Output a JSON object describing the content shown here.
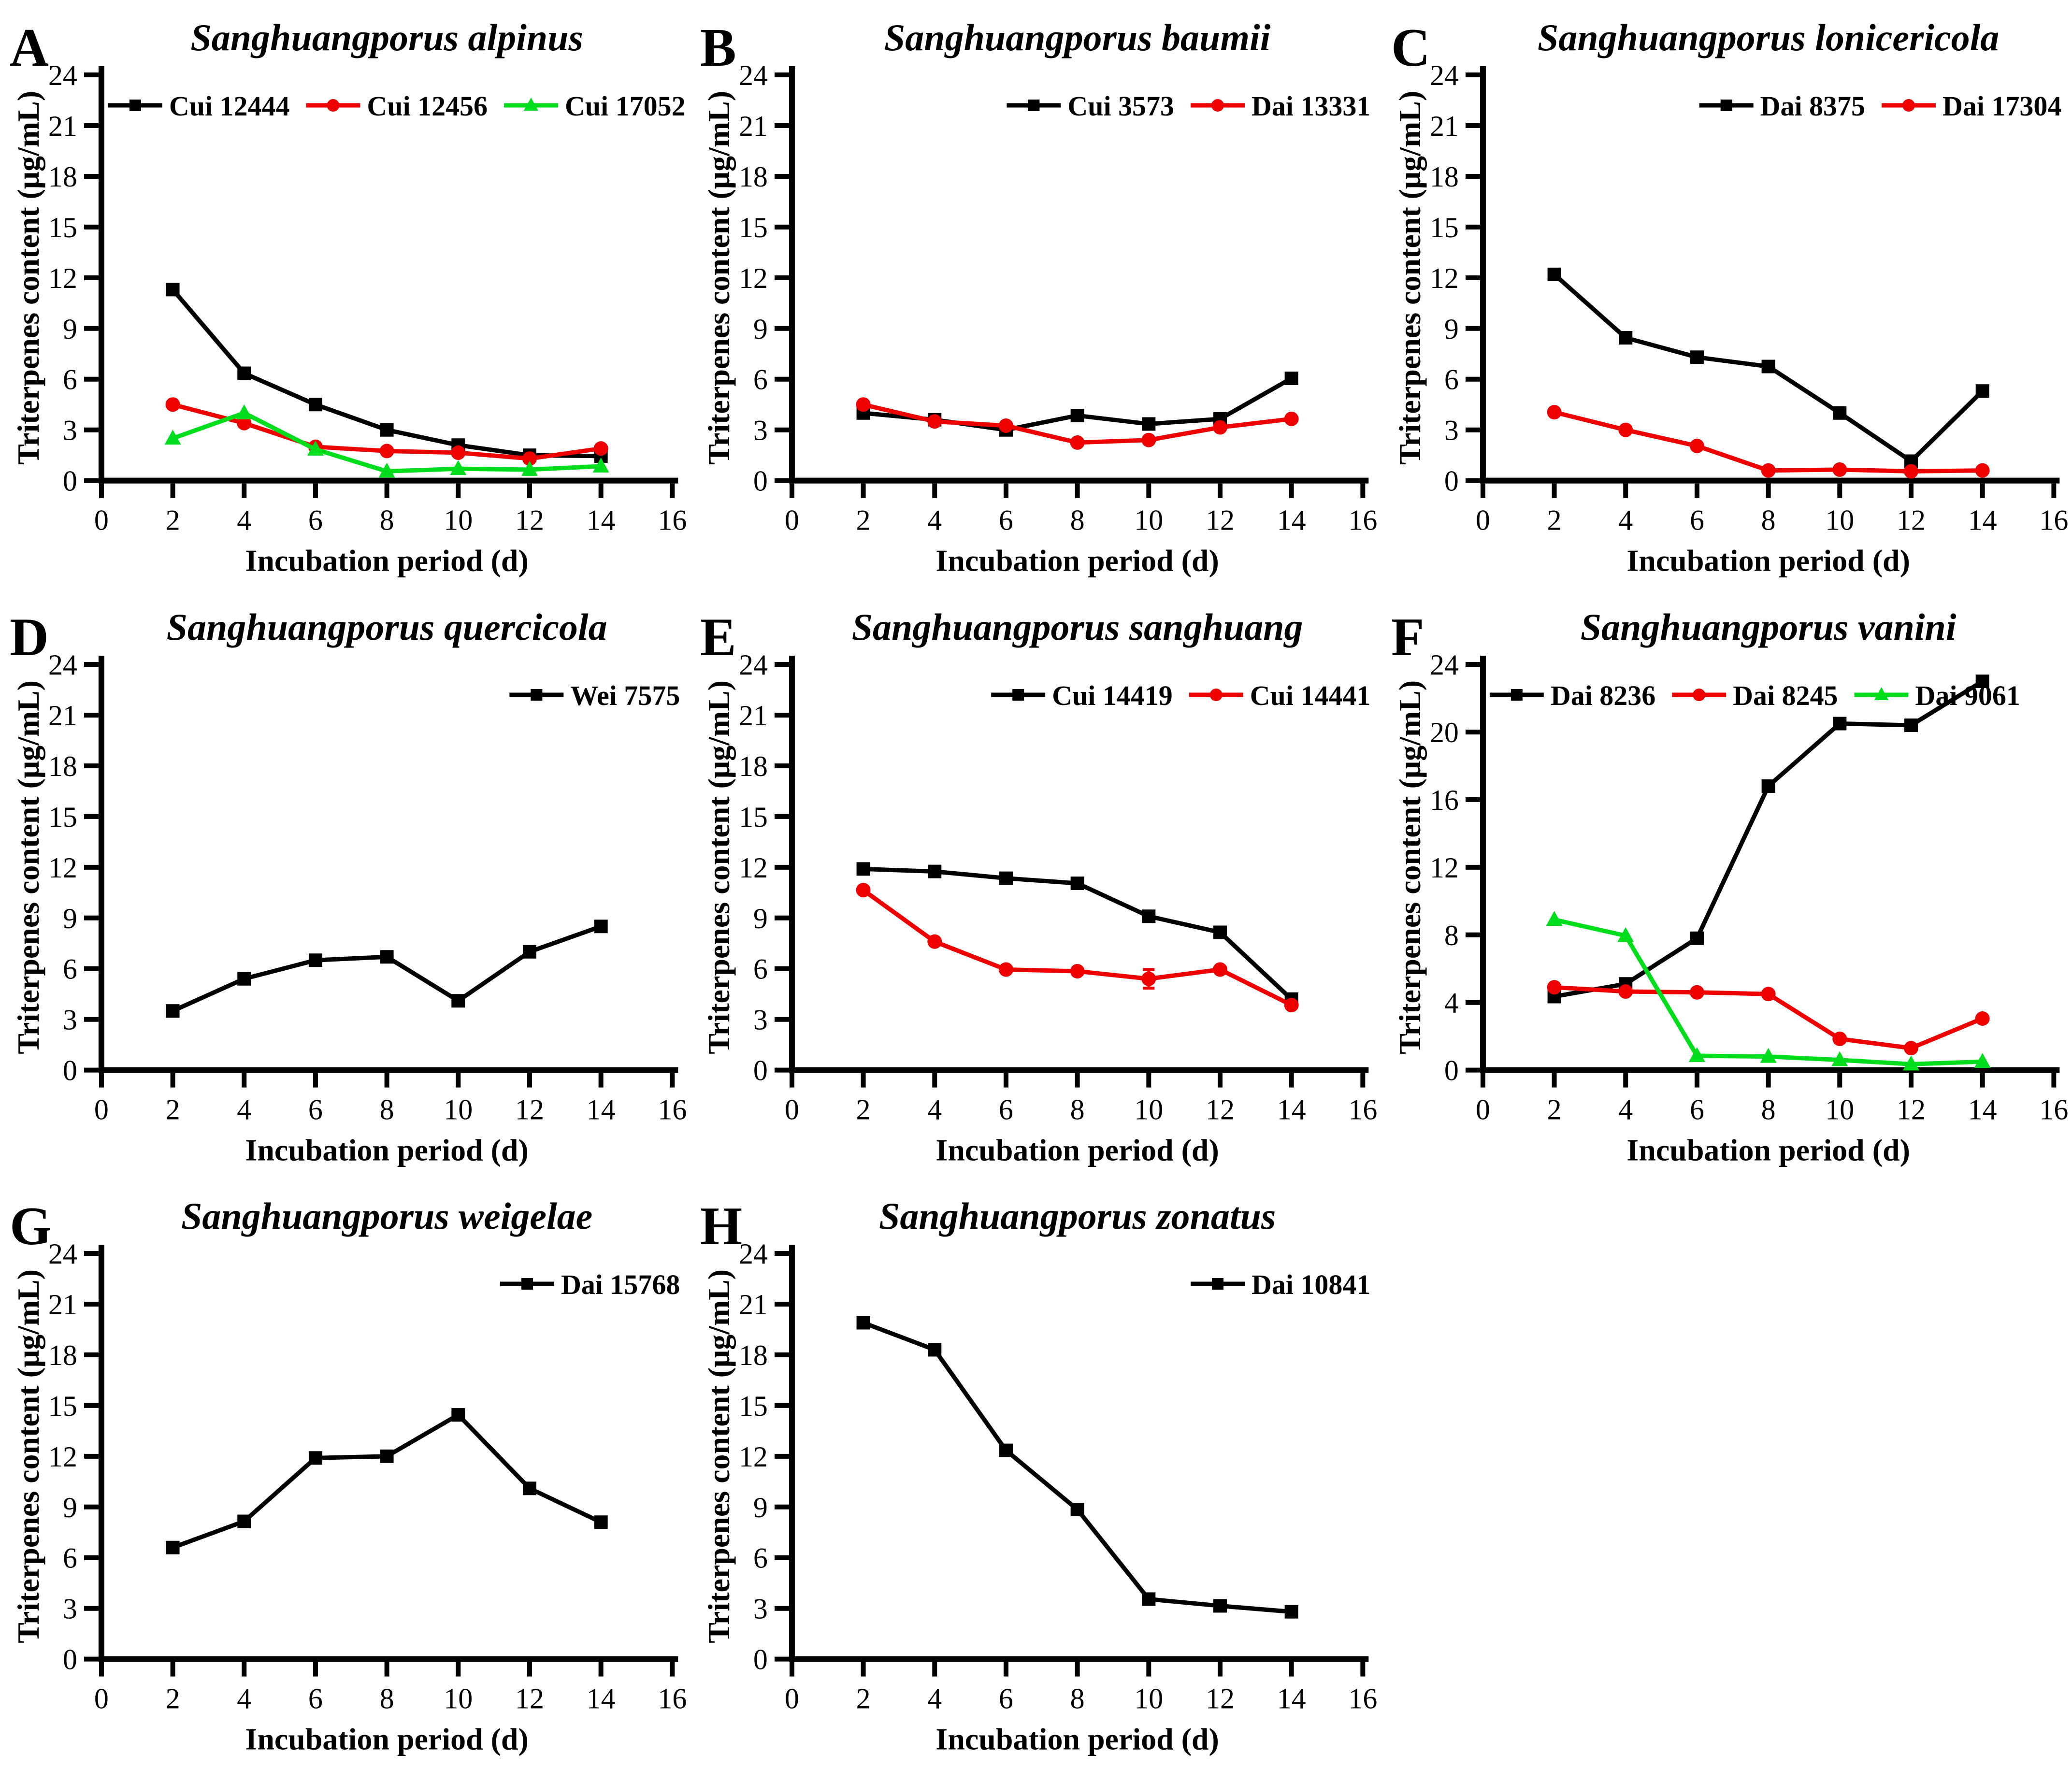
{
  "figure": {
    "background": "#ffffff",
    "palette": {
      "black": "#000000",
      "red": "#ee0000",
      "green": "#00dd1c"
    },
    "y_axis_title": "Triterpenes content (μg/mL)",
    "x_axis_title": "Incubation period (d)"
  },
  "chart_data": [
    {
      "type": "line",
      "letter": "A",
      "title": "Sanghuangporus alpinus",
      "xlabel": "Incubation period (d)",
      "ylabel": "Triterpenes content (μg/mL)",
      "xlim": [
        0,
        16
      ],
      "ylim": [
        0,
        24
      ],
      "x_ticks": [
        0,
        2,
        4,
        6,
        8,
        10,
        12,
        14,
        16
      ],
      "y_tick_step": 3,
      "grid": false,
      "legend_position": "top-left",
      "x": [
        2,
        4,
        6,
        8,
        10,
        12,
        14
      ],
      "series": [
        {
          "name": "Cui 12444",
          "color": "#000000",
          "marker": "square",
          "values": [
            11.3,
            6.35,
            4.5,
            3.0,
            2.1,
            1.5,
            1.45
          ]
        },
        {
          "name": "Cui 12456",
          "color": "#ee0000",
          "marker": "circle",
          "values": [
            4.5,
            3.4,
            2.0,
            1.75,
            1.65,
            1.3,
            1.9
          ]
        },
        {
          "name": "Cui 17052",
          "color": "#00dd1c",
          "marker": "triangle",
          "values": [
            2.5,
            4.0,
            1.85,
            0.55,
            0.7,
            0.65,
            0.85
          ]
        }
      ]
    },
    {
      "type": "line",
      "letter": "B",
      "title": "Sanghuangporus baumii",
      "xlabel": "Incubation period (d)",
      "ylabel": "Triterpenes content (μg/mL)",
      "xlim": [
        0,
        16
      ],
      "ylim": [
        0,
        24
      ],
      "x_ticks": [
        0,
        2,
        4,
        6,
        8,
        10,
        12,
        14,
        16
      ],
      "y_tick_step": 3,
      "grid": false,
      "legend_position": "top-right",
      "x": [
        2,
        4,
        6,
        8,
        10,
        12,
        14
      ],
      "series": [
        {
          "name": "Cui 3573",
          "color": "#000000",
          "marker": "square",
          "values": [
            4.0,
            3.6,
            3.0,
            3.85,
            3.35,
            3.65,
            6.05
          ],
          "err": [
            0,
            0.25,
            0,
            0,
            0,
            0,
            0
          ]
        },
        {
          "name": "Dai 13331",
          "color": "#ee0000",
          "marker": "circle",
          "values": [
            4.5,
            3.5,
            3.25,
            2.25,
            2.4,
            3.15,
            3.65
          ]
        }
      ]
    },
    {
      "type": "line",
      "letter": "C",
      "title": "Sanghuangporus lonicericola",
      "xlabel": "Incubation period (d)",
      "ylabel": "Triterpenes content (μg/mL)",
      "xlim": [
        0,
        16
      ],
      "ylim": [
        0,
        24
      ],
      "x_ticks": [
        0,
        2,
        4,
        6,
        8,
        10,
        12,
        14,
        16
      ],
      "y_tick_step": 3,
      "grid": false,
      "legend_position": "top-right",
      "x": [
        2,
        4,
        6,
        8,
        10,
        12,
        14
      ],
      "series": [
        {
          "name": "Dai 8375",
          "color": "#000000",
          "marker": "square",
          "values": [
            12.2,
            8.45,
            7.3,
            6.75,
            4.0,
            1.15,
            5.3
          ]
        },
        {
          "name": "Dai 17304",
          "color": "#ee0000",
          "marker": "circle",
          "values": [
            4.05,
            3.0,
            2.05,
            0.6,
            0.65,
            0.55,
            0.6
          ]
        }
      ]
    },
    {
      "type": "line",
      "letter": "D",
      "title": "Sanghuangporus quercicola",
      "xlabel": "Incubation period (d)",
      "ylabel": "Triterpenes content (μg/mL)",
      "xlim": [
        0,
        16
      ],
      "ylim": [
        0,
        24
      ],
      "x_ticks": [
        0,
        2,
        4,
        6,
        8,
        10,
        12,
        14,
        16
      ],
      "y_tick_step": 3,
      "grid": false,
      "legend_position": "top-right",
      "x": [
        2,
        4,
        6,
        8,
        10,
        12,
        14
      ],
      "series": [
        {
          "name": "Wei 7575",
          "color": "#000000",
          "marker": "square",
          "values": [
            3.5,
            5.4,
            6.5,
            6.7,
            4.1,
            7.0,
            8.5
          ]
        }
      ]
    },
    {
      "type": "line",
      "letter": "E",
      "title": "Sanghuangporus sanghuang",
      "xlabel": "Incubation period (d)",
      "ylabel": "Triterpenes content (μg/mL)",
      "xlim": [
        0,
        16
      ],
      "ylim": [
        0,
        24
      ],
      "x_ticks": [
        0,
        2,
        4,
        6,
        8,
        10,
        12,
        14,
        16
      ],
      "y_tick_step": 3,
      "grid": false,
      "legend_position": "top-right",
      "x": [
        2,
        4,
        6,
        8,
        10,
        12,
        14
      ],
      "series": [
        {
          "name": "Cui 14419",
          "color": "#000000",
          "marker": "square",
          "values": [
            11.9,
            11.75,
            11.35,
            11.05,
            9.1,
            8.15,
            4.2
          ]
        },
        {
          "name": "Cui 14441",
          "color": "#ee0000",
          "marker": "circle",
          "values": [
            10.65,
            7.6,
            5.95,
            5.85,
            5.4,
            5.95,
            3.85
          ],
          "err": [
            0,
            0,
            0,
            0,
            0.55,
            0,
            0
          ]
        }
      ]
    },
    {
      "type": "line",
      "letter": "F",
      "title": "Sanghuangporus vanini",
      "xlabel": "Incubation period (d)",
      "ylabel": "Triterpenes content (μg/mL)",
      "xlim": [
        0,
        16
      ],
      "ylim": [
        0,
        24
      ],
      "x_ticks": [
        0,
        2,
        4,
        6,
        8,
        10,
        12,
        14,
        16
      ],
      "y_tick_step": 4,
      "grid": false,
      "legend_position": "top-left",
      "x": [
        2,
        4,
        6,
        8,
        10,
        12,
        14
      ],
      "series": [
        {
          "name": "Dai 8236",
          "color": "#000000",
          "marker": "square",
          "values": [
            4.35,
            5.1,
            7.8,
            16.8,
            20.5,
            20.4,
            23.0
          ]
        },
        {
          "name": "Dai 8245",
          "color": "#ee0000",
          "marker": "circle",
          "values": [
            4.9,
            4.65,
            4.6,
            4.5,
            1.85,
            1.3,
            3.05
          ]
        },
        {
          "name": "Dai 9061",
          "color": "#00dd1c",
          "marker": "triangle",
          "values": [
            8.9,
            7.95,
            0.85,
            0.8,
            0.6,
            0.35,
            0.5
          ]
        }
      ]
    },
    {
      "type": "line",
      "letter": "G",
      "title": "Sanghuangporus weigelae",
      "xlabel": "Incubation period (d)",
      "ylabel": "Triterpenes content (μg/mL)",
      "xlim": [
        0,
        16
      ],
      "ylim": [
        0,
        24
      ],
      "x_ticks": [
        0,
        2,
        4,
        6,
        8,
        10,
        12,
        14,
        16
      ],
      "y_tick_step": 3,
      "grid": false,
      "legend_position": "top-right",
      "x": [
        2,
        4,
        6,
        8,
        10,
        12,
        14
      ],
      "series": [
        {
          "name": "Dai 15768",
          "color": "#000000",
          "marker": "square",
          "values": [
            6.6,
            8.15,
            11.9,
            12.0,
            14.45,
            10.1,
            8.1
          ]
        }
      ]
    },
    {
      "type": "line",
      "letter": "H",
      "title": "Sanghuangporus zonatus",
      "xlabel": "Incubation period (d)",
      "ylabel": "Triterpenes content (μg/mL)",
      "xlim": [
        0,
        16
      ],
      "ylim": [
        0,
        24
      ],
      "x_ticks": [
        0,
        2,
        4,
        6,
        8,
        10,
        12,
        14,
        16
      ],
      "y_tick_step": 3,
      "grid": false,
      "legend_position": "top-right",
      "x": [
        2,
        4,
        6,
        8,
        10,
        12,
        14
      ],
      "series": [
        {
          "name": "Dai 10841",
          "color": "#000000",
          "marker": "square",
          "values": [
            19.9,
            18.3,
            12.35,
            8.85,
            3.55,
            3.15,
            2.8
          ]
        }
      ]
    }
  ]
}
